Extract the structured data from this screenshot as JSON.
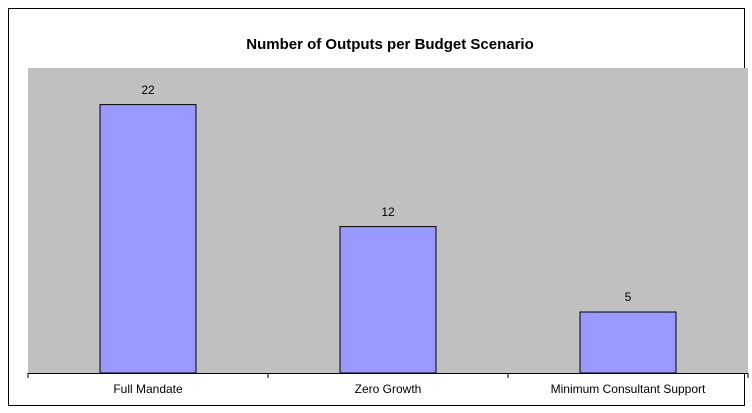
{
  "chart_data": {
    "type": "bar",
    "title": "Number of Outputs per Budget Scenario",
    "categories": [
      "Full Mandate",
      "Zero Growth",
      "Minimum Consultant Support"
    ],
    "values": [
      22,
      12,
      5
    ],
    "color": "#9999ff",
    "ylim": [
      0,
      25
    ]
  }
}
